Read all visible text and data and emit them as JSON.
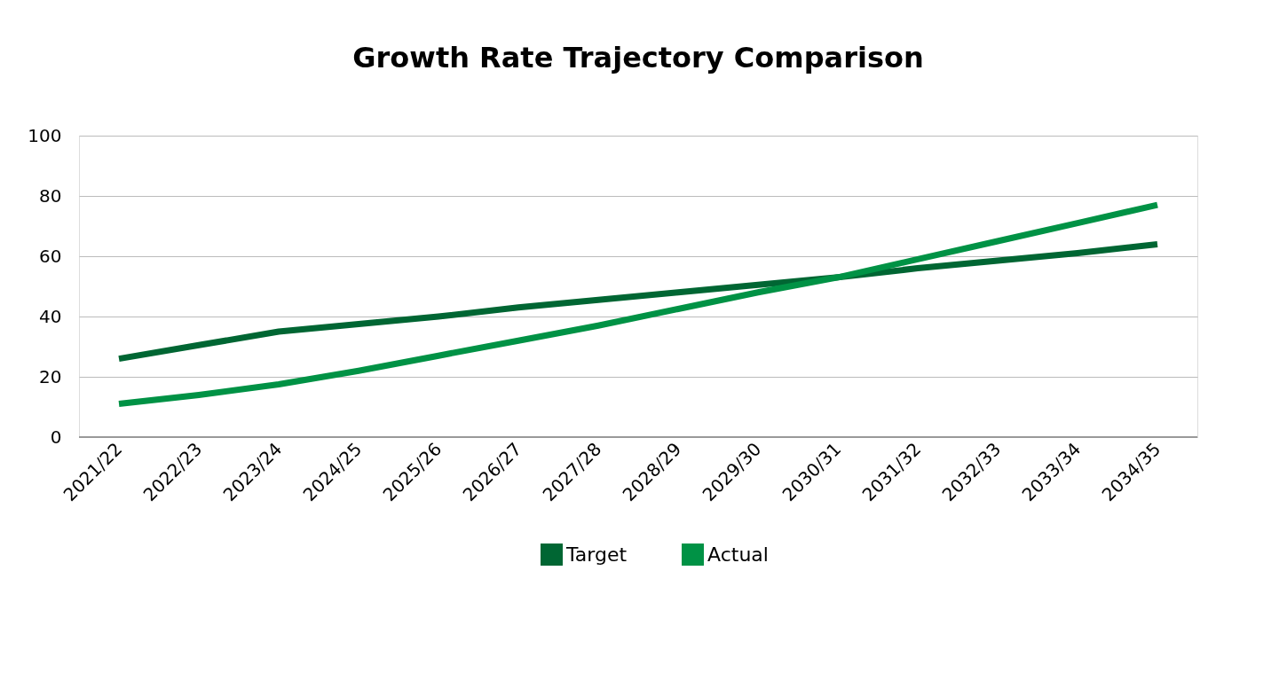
{
  "chart_data": {
    "type": "line",
    "title": "Growth Rate Trajectory Comparison",
    "categories": [
      "2021/22",
      "2022/23",
      "2023/24",
      "2024/25",
      "2025/26",
      "2026/27",
      "2027/28",
      "2028/29",
      "2029/30",
      "2030/31",
      "2031/32",
      "2032/33",
      "2033/34",
      "2034/35"
    ],
    "series": [
      {
        "name": "Target",
        "color": "#006633",
        "values": [
          26,
          30.5,
          35,
          37.5,
          40,
          43,
          45.5,
          48,
          50.5,
          53,
          56,
          58.5,
          61,
          64
        ]
      },
      {
        "name": "Actual",
        "color": "#009245",
        "values": [
          11,
          14,
          17.5,
          22,
          27,
          32,
          37,
          42.5,
          48,
          53,
          59,
          65,
          71,
          77
        ]
      }
    ],
    "ylim": [
      0,
      100
    ],
    "yticks": [
      0,
      20,
      40,
      60,
      80,
      100
    ],
    "grid": "y",
    "legend": "bottom",
    "marker": "none",
    "line_style": "solid"
  }
}
